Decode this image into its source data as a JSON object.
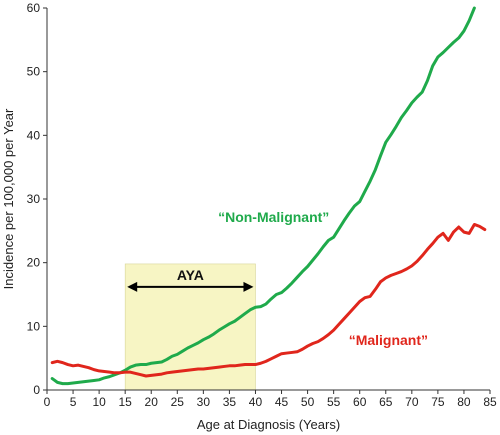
{
  "chart_data": {
    "type": "line",
    "xlabel": "Age at Diagnosis (Years)",
    "ylabel": "Incidence per 100,000 per Year",
    "xlim": [
      0,
      85
    ],
    "ylim": [
      0,
      60
    ],
    "x_ticks": [
      0,
      5,
      10,
      15,
      20,
      25,
      30,
      35,
      40,
      45,
      50,
      55,
      60,
      65,
      70,
      75,
      80,
      85
    ],
    "y_ticks": [
      0,
      10,
      20,
      30,
      40,
      50,
      60
    ],
    "grid": false,
    "band": {
      "label": "AYA",
      "x_range": [
        15,
        40
      ],
      "color": "#f7f5c4"
    },
    "series": [
      {
        "name": "“Non-Malignant”",
        "color": "#1faa4b",
        "x": [
          1,
          2,
          3,
          4,
          5,
          6,
          7,
          8,
          9,
          10,
          11,
          12,
          13,
          14,
          15,
          16,
          17,
          18,
          19,
          20,
          21,
          22,
          23,
          24,
          25,
          26,
          27,
          28,
          29,
          30,
          31,
          32,
          33,
          34,
          35,
          36,
          37,
          38,
          39,
          40,
          41,
          42,
          43,
          44,
          45,
          46,
          47,
          48,
          49,
          50,
          51,
          52,
          53,
          54,
          55,
          56,
          57,
          58,
          59,
          60,
          61,
          62,
          63,
          64,
          65,
          66,
          67,
          68,
          69,
          70,
          71,
          72,
          73,
          74,
          75,
          76,
          77,
          78,
          79,
          80,
          81,
          82
        ],
        "values": [
          1.8,
          1.2,
          1.0,
          1.0,
          1.1,
          1.2,
          1.3,
          1.4,
          1.5,
          1.6,
          1.9,
          2.1,
          2.4,
          2.7,
          3.1,
          3.6,
          3.9,
          4.0,
          4.0,
          4.2,
          4.3,
          4.4,
          4.8,
          5.3,
          5.6,
          6.1,
          6.6,
          7.0,
          7.4,
          7.9,
          8.3,
          8.8,
          9.4,
          9.9,
          10.4,
          10.8,
          11.4,
          12.0,
          12.6,
          13.0,
          13.1,
          13.5,
          14.3,
          15.0,
          15.3,
          16.0,
          16.8,
          17.7,
          18.6,
          19.4,
          20.4,
          21.4,
          22.5,
          23.5,
          24.0,
          25.3,
          26.6,
          27.8,
          28.9,
          29.6,
          31.2,
          32.8,
          34.6,
          36.8,
          38.9,
          40.1,
          41.4,
          42.8,
          43.9,
          45.1,
          46.0,
          46.8,
          48.6,
          50.9,
          52.3,
          53.0,
          53.8,
          54.6,
          55.3,
          56.4,
          58.0,
          60.0
        ]
      },
      {
        "name": "“Malignant”",
        "color": "#e0261c",
        "x": [
          1,
          2,
          3,
          4,
          5,
          6,
          7,
          8,
          9,
          10,
          11,
          12,
          13,
          14,
          15,
          16,
          17,
          18,
          19,
          20,
          21,
          22,
          23,
          24,
          25,
          26,
          27,
          28,
          29,
          30,
          31,
          32,
          33,
          34,
          35,
          36,
          37,
          38,
          39,
          40,
          41,
          42,
          43,
          44,
          45,
          46,
          47,
          48,
          49,
          50,
          51,
          52,
          53,
          54,
          55,
          56,
          57,
          58,
          59,
          60,
          61,
          62,
          63,
          64,
          65,
          66,
          67,
          68,
          69,
          70,
          71,
          72,
          73,
          74,
          75,
          76,
          77,
          78,
          79,
          80,
          81,
          82,
          83,
          84
        ],
        "values": [
          4.3,
          4.5,
          4.3,
          4.0,
          3.8,
          3.9,
          3.7,
          3.5,
          3.2,
          3.0,
          2.9,
          2.8,
          2.7,
          2.7,
          2.8,
          2.8,
          2.6,
          2.4,
          2.2,
          2.3,
          2.4,
          2.5,
          2.7,
          2.8,
          2.9,
          3.0,
          3.1,
          3.2,
          3.3,
          3.3,
          3.4,
          3.5,
          3.6,
          3.7,
          3.8,
          3.8,
          3.9,
          4.0,
          4.0,
          4.0,
          4.2,
          4.5,
          4.9,
          5.3,
          5.7,
          5.8,
          5.9,
          6.0,
          6.4,
          6.9,
          7.3,
          7.6,
          8.1,
          8.7,
          9.4,
          10.3,
          11.2,
          12.1,
          13.0,
          13.9,
          14.5,
          14.7,
          15.8,
          17.0,
          17.6,
          18.0,
          18.3,
          18.6,
          19.0,
          19.5,
          20.2,
          21.1,
          22.1,
          23.0,
          24.0,
          24.6,
          23.5,
          24.8,
          25.6,
          24.8,
          24.6,
          26.0,
          25.7,
          25.2
        ]
      }
    ]
  }
}
